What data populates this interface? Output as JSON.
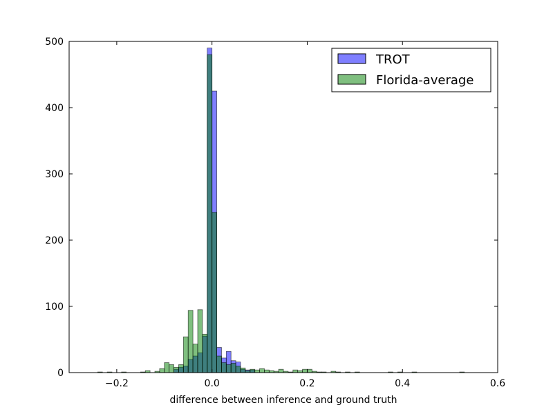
{
  "chart_data": {
    "type": "histogram",
    "title": "",
    "xlabel": "difference between inference and ground truth",
    "ylabel": "",
    "xlim": [
      -0.3,
      0.6
    ],
    "ylim": [
      0,
      500
    ],
    "xticks": [
      -0.2,
      0.0,
      0.2,
      0.4,
      0.6
    ],
    "xtick_labels": [
      "−0.2",
      "0.0",
      "0.2",
      "0.4",
      "0.6"
    ],
    "yticks": [
      0,
      100,
      200,
      300,
      400,
      500
    ],
    "ytick_labels": [
      "0",
      "100",
      "200",
      "300",
      "400",
      "500"
    ],
    "grid": false,
    "legend": {
      "position": "top-right"
    },
    "bin_width": 0.01,
    "series": [
      {
        "name": "TROT",
        "color": "#0000ff",
        "opacity": 0.5,
        "bins": [
          {
            "x": -0.08,
            "y": 5
          },
          {
            "x": -0.07,
            "y": 8
          },
          {
            "x": -0.06,
            "y": 10
          },
          {
            "x": -0.05,
            "y": 20
          },
          {
            "x": -0.04,
            "y": 25
          },
          {
            "x": -0.03,
            "y": 30
          },
          {
            "x": -0.02,
            "y": 55
          },
          {
            "x": -0.01,
            "y": 490
          },
          {
            "x": 0.0,
            "y": 425
          },
          {
            "x": 0.01,
            "y": 38
          },
          {
            "x": 0.02,
            "y": 22
          },
          {
            "x": 0.03,
            "y": 32
          },
          {
            "x": 0.04,
            "y": 18
          },
          {
            "x": 0.05,
            "y": 16
          },
          {
            "x": 0.06,
            "y": 5
          },
          {
            "x": 0.07,
            "y": 4
          },
          {
            "x": 0.08,
            "y": 4
          }
        ]
      },
      {
        "name": "Florida-average",
        "color": "#008000",
        "opacity": 0.5,
        "bins": [
          {
            "x": -0.24,
            "y": 1
          },
          {
            "x": -0.22,
            "y": 1
          },
          {
            "x": -0.19,
            "y": 1
          },
          {
            "x": -0.15,
            "y": 1
          },
          {
            "x": -0.14,
            "y": 3
          },
          {
            "x": -0.12,
            "y": 2
          },
          {
            "x": -0.11,
            "y": 6
          },
          {
            "x": -0.1,
            "y": 15
          },
          {
            "x": -0.09,
            "y": 12
          },
          {
            "x": -0.08,
            "y": 8
          },
          {
            "x": -0.07,
            "y": 12
          },
          {
            "x": -0.06,
            "y": 54
          },
          {
            "x": -0.05,
            "y": 94
          },
          {
            "x": -0.04,
            "y": 43
          },
          {
            "x": -0.03,
            "y": 95
          },
          {
            "x": -0.02,
            "y": 58
          },
          {
            "x": -0.01,
            "y": 480
          },
          {
            "x": 0.0,
            "y": 242
          },
          {
            "x": 0.01,
            "y": 25
          },
          {
            "x": 0.02,
            "y": 15
          },
          {
            "x": 0.03,
            "y": 12
          },
          {
            "x": 0.04,
            "y": 14
          },
          {
            "x": 0.05,
            "y": 10
          },
          {
            "x": 0.06,
            "y": 7
          },
          {
            "x": 0.07,
            "y": 3
          },
          {
            "x": 0.08,
            "y": 5
          },
          {
            "x": 0.09,
            "y": 4
          },
          {
            "x": 0.1,
            "y": 6
          },
          {
            "x": 0.11,
            "y": 4
          },
          {
            "x": 0.12,
            "y": 3
          },
          {
            "x": 0.13,
            "y": 2
          },
          {
            "x": 0.14,
            "y": 5
          },
          {
            "x": 0.15,
            "y": 2
          },
          {
            "x": 0.16,
            "y": 1
          },
          {
            "x": 0.17,
            "y": 4
          },
          {
            "x": 0.18,
            "y": 3
          },
          {
            "x": 0.19,
            "y": 5
          },
          {
            "x": 0.2,
            "y": 5
          },
          {
            "x": 0.21,
            "y": 2
          },
          {
            "x": 0.22,
            "y": 1
          },
          {
            "x": 0.23,
            "y": 1
          },
          {
            "x": 0.25,
            "y": 2
          },
          {
            "x": 0.26,
            "y": 1
          },
          {
            "x": 0.28,
            "y": 1
          },
          {
            "x": 0.3,
            "y": 1
          },
          {
            "x": 0.37,
            "y": 1
          },
          {
            "x": 0.39,
            "y": 1
          },
          {
            "x": 0.42,
            "y": 1
          },
          {
            "x": 0.52,
            "y": 1
          }
        ]
      }
    ]
  }
}
